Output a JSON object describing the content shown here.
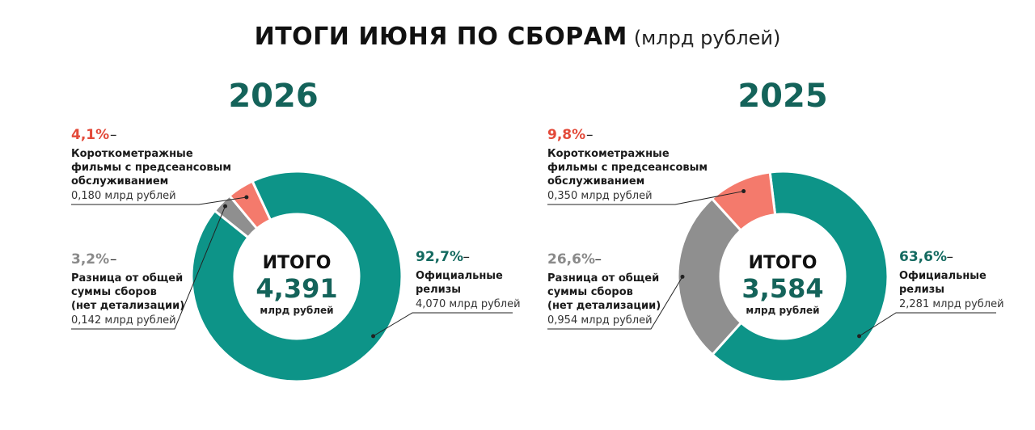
{
  "title": "ИТОГИ ИЮНЯ ПО СБОРАМ",
  "title_unit": "(млрд рублей)",
  "colors": {
    "official": "#0d9488",
    "short": "#f47a6c",
    "diff": "#8f8f8f",
    "year": "#14635a",
    "short_pct": "#e34a3a",
    "diff_pct": "#8a8a8a",
    "official_pct": "#146a60"
  },
  "chart_data": [
    {
      "type": "pie",
      "year": "2026",
      "center": {
        "label": "ИТОГО",
        "total": "4,391",
        "unit": "млрд рублей"
      },
      "slices": [
        {
          "key": "short",
          "pct": 4.1,
          "pct_text": "4,1%",
          "dash": "–",
          "label_lines": [
            "Короткометражные",
            "фильмы с предсеансовым",
            "обслуживанием"
          ],
          "value_text": "0,180 млрд рублей"
        },
        {
          "key": "diff",
          "pct": 3.2,
          "pct_text": "3,2%",
          "dash": "–",
          "label_lines": [
            "Разница от общей",
            "суммы сборов",
            "(нет детализации)"
          ],
          "value_text": "0,142 млрд рублей"
        },
        {
          "key": "official",
          "pct": 92.7,
          "pct_text": "92,7%",
          "dash": "–",
          "label_lines": [
            "Официальные",
            "релизы"
          ],
          "value_text": "4,070 млрд рублей"
        }
      ]
    },
    {
      "type": "pie",
      "year": "2025",
      "center": {
        "label": "ИТОГО",
        "total": "3,584",
        "unit": "млрд рублей"
      },
      "slices": [
        {
          "key": "short",
          "pct": 9.8,
          "pct_text": "9,8%",
          "dash": "–",
          "label_lines": [
            "Короткометражные",
            "фильмы с предсеансовым",
            "обслуживанием"
          ],
          "value_text": "0,350 млрд рублей"
        },
        {
          "key": "diff",
          "pct": 26.6,
          "pct_text": "26,6%",
          "dash": "–",
          "label_lines": [
            "Разница от общей",
            "суммы сборов",
            "(нет детализации)"
          ],
          "value_text": "0,954 млрд рублей"
        },
        {
          "key": "official",
          "pct": 63.6,
          "pct_text": "63,6%",
          "dash": "–",
          "label_lines": [
            "Официальные",
            "релизы"
          ],
          "value_text": "2,281 млрд рублей"
        }
      ]
    }
  ]
}
